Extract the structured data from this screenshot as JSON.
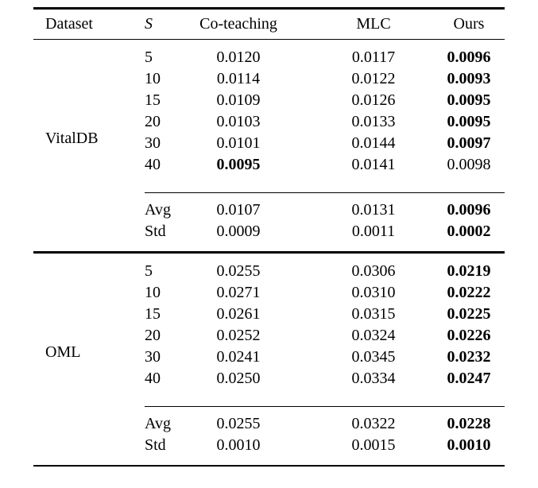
{
  "table": {
    "header": {
      "dataset": "Dataset",
      "s": "S",
      "cols": [
        "Co-teaching",
        "MLC",
        "Ours"
      ]
    },
    "sections": [
      {
        "dataset": "VitalDB",
        "rows": [
          {
            "s": "5",
            "values": [
              "0.0120",
              "0.0117",
              "0.0096"
            ],
            "bold": [
              false,
              false,
              true
            ]
          },
          {
            "s": "10",
            "values": [
              "0.0114",
              "0.0122",
              "0.0093"
            ],
            "bold": [
              false,
              false,
              true
            ]
          },
          {
            "s": "15",
            "values": [
              "0.0109",
              "0.0126",
              "0.0095"
            ],
            "bold": [
              false,
              false,
              true
            ]
          },
          {
            "s": "20",
            "values": [
              "0.0103",
              "0.0133",
              "0.0095"
            ],
            "bold": [
              false,
              false,
              true
            ]
          },
          {
            "s": "30",
            "values": [
              "0.0101",
              "0.0144",
              "0.0097"
            ],
            "bold": [
              false,
              false,
              true
            ]
          },
          {
            "s": "40",
            "values": [
              "0.0095",
              "0.0141",
              "0.0098"
            ],
            "bold": [
              true,
              false,
              false
            ]
          }
        ],
        "summary": [
          {
            "s": "Avg",
            "values": [
              "0.0107",
              "0.0131",
              "0.0096"
            ],
            "bold": [
              false,
              false,
              true
            ]
          },
          {
            "s": "Std",
            "values": [
              "0.0009",
              "0.0011",
              "0.0002"
            ],
            "bold": [
              false,
              false,
              true
            ]
          }
        ]
      },
      {
        "dataset": "OML",
        "rows": [
          {
            "s": "5",
            "values": [
              "0.0255",
              "0.0306",
              "0.0219"
            ],
            "bold": [
              false,
              false,
              true
            ]
          },
          {
            "s": "10",
            "values": [
              "0.0271",
              "0.0310",
              "0.0222"
            ],
            "bold": [
              false,
              false,
              true
            ]
          },
          {
            "s": "15",
            "values": [
              "0.0261",
              "0.0315",
              "0.0225"
            ],
            "bold": [
              false,
              false,
              true
            ]
          },
          {
            "s": "20",
            "values": [
              "0.0252",
              "0.0324",
              "0.0226"
            ],
            "bold": [
              false,
              false,
              true
            ]
          },
          {
            "s": "30",
            "values": [
              "0.0241",
              "0.0345",
              "0.0232"
            ],
            "bold": [
              false,
              false,
              true
            ]
          },
          {
            "s": "40",
            "values": [
              "0.0250",
              "0.0334",
              "0.0247"
            ],
            "bold": [
              false,
              false,
              true
            ]
          }
        ],
        "summary": [
          {
            "s": "Avg",
            "values": [
              "0.0255",
              "0.0322",
              "0.0228"
            ],
            "bold": [
              false,
              false,
              true
            ]
          },
          {
            "s": "Std",
            "values": [
              "0.0010",
              "0.0015",
              "0.0010"
            ],
            "bold": [
              false,
              false,
              true
            ]
          }
        ]
      }
    ],
    "colors": {
      "text": "#000000",
      "rule": "#000000",
      "background": "#ffffff"
    }
  }
}
